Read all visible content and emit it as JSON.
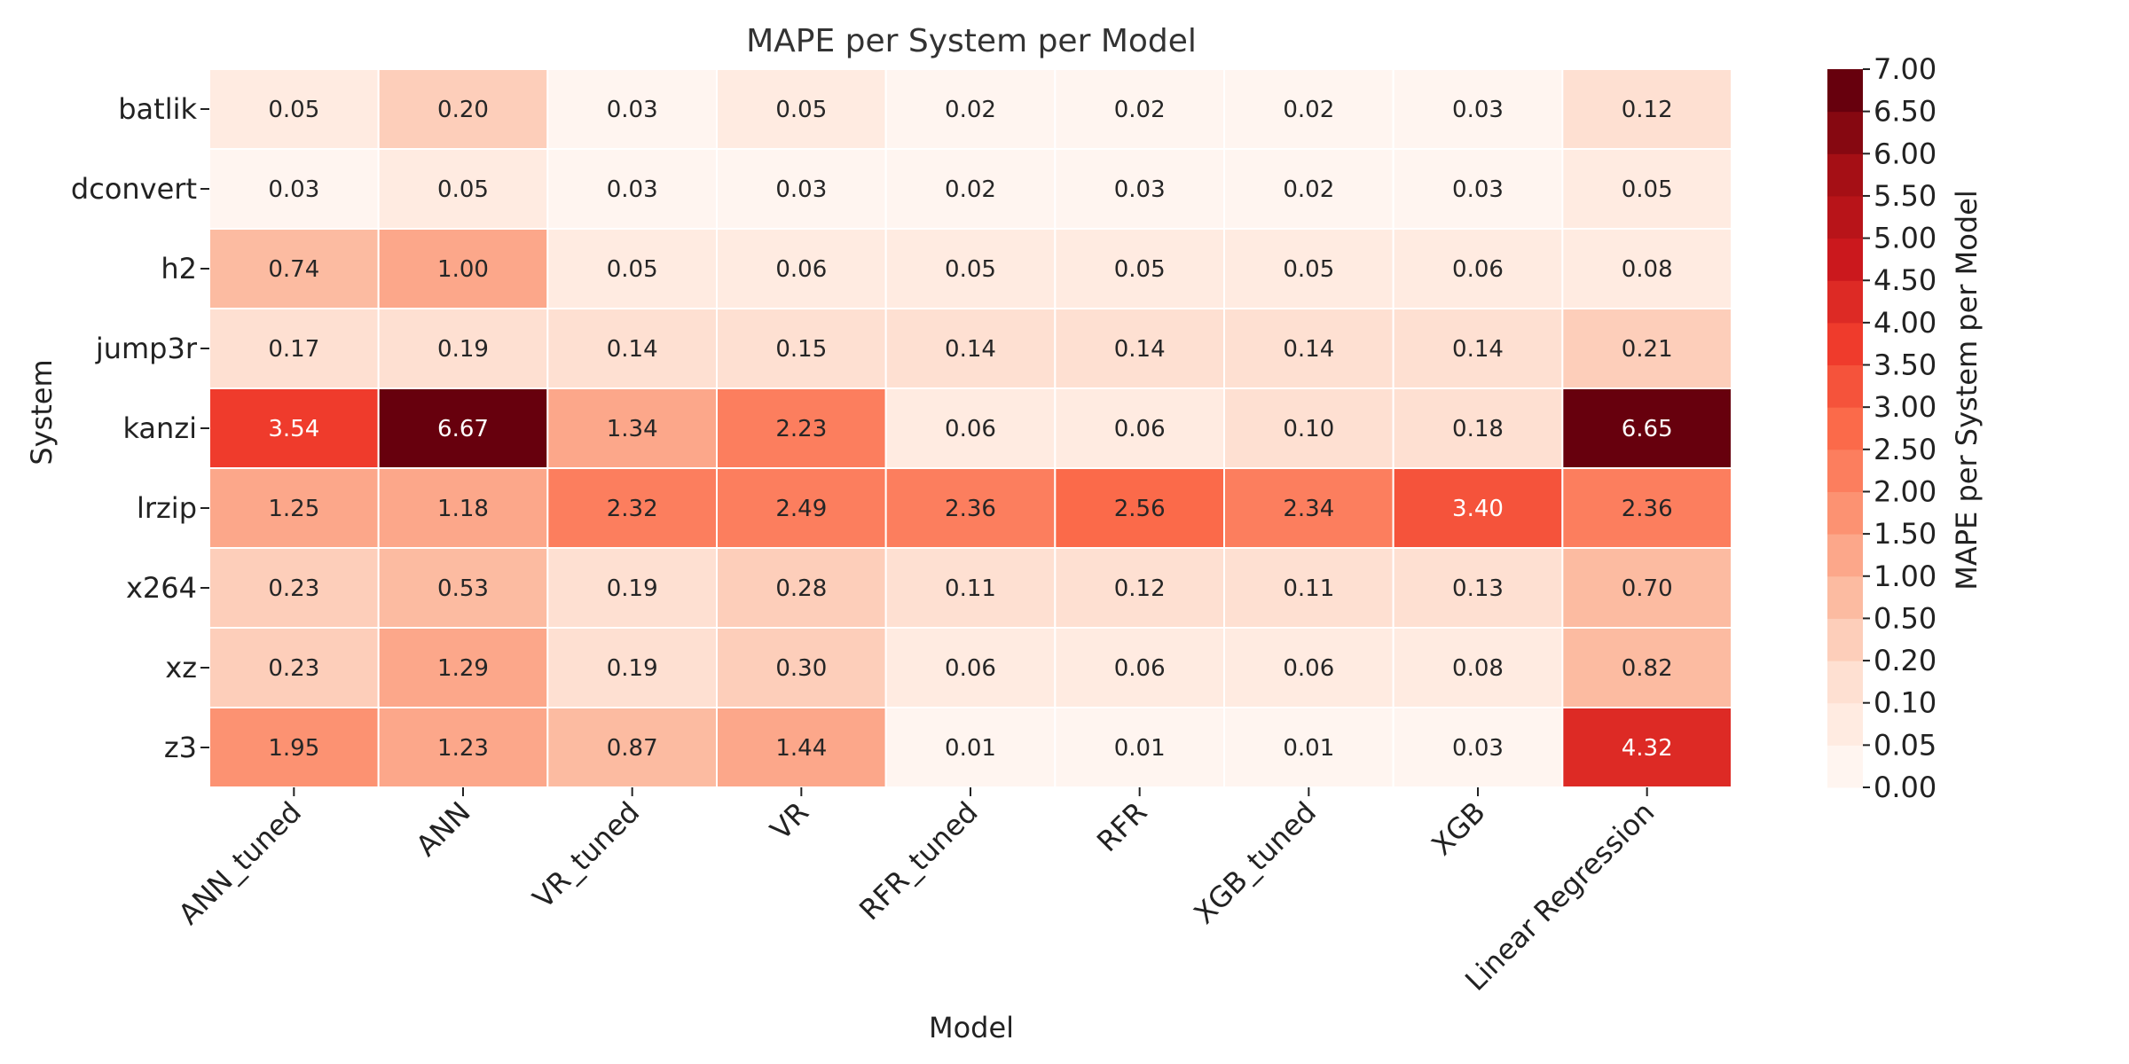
{
  "chart_data": {
    "type": "heatmap",
    "title": "MAPE per System per Model",
    "xlabel": "Model",
    "ylabel": "System",
    "colorbar_label": "MAPE per System per Model",
    "x_categories": [
      "ANN_tuned",
      "ANN",
      "VR_tuned",
      "VR",
      "RFR_tuned",
      "RFR",
      "XGB_tuned",
      "XGB",
      "Linear Regression"
    ],
    "y_categories": [
      "batlik",
      "dconvert",
      "h2",
      "jump3r",
      "kanzi",
      "lrzip",
      "x264",
      "xz",
      "z3"
    ],
    "values": [
      [
        0.05,
        0.2,
        0.03,
        0.05,
        0.02,
        0.02,
        0.02,
        0.03,
        0.12
      ],
      [
        0.03,
        0.05,
        0.03,
        0.03,
        0.02,
        0.03,
        0.02,
        0.03,
        0.05
      ],
      [
        0.74,
        1.0,
        0.05,
        0.06,
        0.05,
        0.05,
        0.05,
        0.06,
        0.08
      ],
      [
        0.17,
        0.19,
        0.14,
        0.15,
        0.14,
        0.14,
        0.14,
        0.14,
        0.21
      ],
      [
        3.54,
        6.67,
        1.34,
        2.23,
        0.06,
        0.06,
        0.1,
        0.18,
        6.65
      ],
      [
        1.25,
        1.18,
        2.32,
        2.49,
        2.36,
        2.56,
        2.34,
        3.4,
        2.36
      ],
      [
        0.23,
        0.53,
        0.19,
        0.28,
        0.11,
        0.12,
        0.11,
        0.13,
        0.7
      ],
      [
        0.23,
        1.29,
        0.19,
        0.3,
        0.06,
        0.06,
        0.06,
        0.08,
        0.82
      ],
      [
        1.95,
        1.23,
        0.87,
        1.44,
        0.01,
        0.01,
        0.01,
        0.03,
        4.32
      ]
    ],
    "color_bounds": [
      0.0,
      0.05,
      0.1,
      0.2,
      0.5,
      1.0,
      1.5,
      2.0,
      2.5,
      3.0,
      3.5,
      4.0,
      4.5,
      5.0,
      5.5,
      6.0,
      6.5,
      7.0
    ],
    "colorbar_tick_labels": [
      "0.00",
      "0.05",
      "0.10",
      "0.20",
      "0.50",
      "1.00",
      "1.50",
      "2.00",
      "2.50",
      "3.00",
      "3.50",
      "4.00",
      "4.50",
      "5.00",
      "5.50",
      "6.00",
      "6.50",
      "7.00"
    ],
    "colormap": "Reds",
    "color_stops": [
      "#fff5f0",
      "#fee0d2",
      "#fcbba1",
      "#fc9272",
      "#fb6a4a",
      "#ef3b2c",
      "#cb181d",
      "#a50f15",
      "#67000d"
    ],
    "value_format": "2 decimals",
    "grid_line_color": "#ffffff",
    "dark_text_color": "#262626",
    "light_text_color": "#ffffff"
  }
}
